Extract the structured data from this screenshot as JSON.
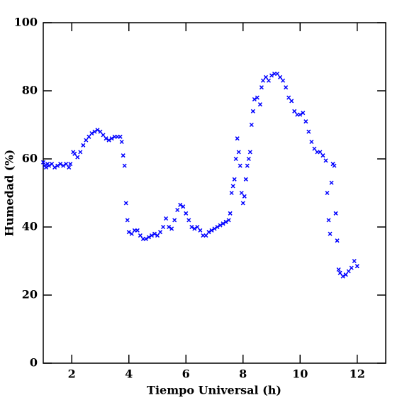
{
  "chart_data": {
    "type": "scatter",
    "xlabel": "Tiempo Universal (h)",
    "ylabel": "Humedad (%)",
    "xlim": [
      1,
      13
    ],
    "ylim": [
      0,
      100
    ],
    "xticks": [
      2,
      4,
      6,
      8,
      10,
      12
    ],
    "yticks": [
      0,
      20,
      40,
      60,
      80,
      100
    ],
    "color": "#0000ff",
    "x": [
      1.0,
      1.05,
      1.1,
      1.15,
      1.2,
      1.3,
      1.4,
      1.5,
      1.6,
      1.7,
      1.8,
      1.9,
      1.95,
      2.05,
      2.1,
      2.2,
      2.3,
      2.4,
      2.5,
      2.6,
      2.7,
      2.8,
      2.9,
      3.0,
      3.1,
      3.2,
      3.3,
      3.4,
      3.5,
      3.6,
      3.7,
      3.75,
      3.8,
      3.85,
      3.9,
      3.95,
      4.0,
      4.1,
      4.2,
      4.3,
      4.4,
      4.5,
      4.6,
      4.7,
      4.8,
      4.9,
      5.0,
      5.1,
      5.2,
      5.3,
      5.4,
      5.5,
      5.6,
      5.7,
      5.8,
      5.9,
      6.0,
      6.1,
      6.2,
      6.3,
      6.4,
      6.5,
      6.6,
      6.7,
      6.8,
      6.9,
      7.0,
      7.1,
      7.2,
      7.3,
      7.4,
      7.5,
      7.55,
      7.6,
      7.65,
      7.7,
      7.75,
      7.8,
      7.85,
      7.9,
      7.95,
      8.0,
      8.05,
      8.1,
      8.15,
      8.2,
      8.25,
      8.3,
      8.35,
      8.4,
      8.5,
      8.6,
      8.65,
      8.7,
      8.8,
      8.9,
      9.0,
      9.1,
      9.2,
      9.3,
      9.4,
      9.5,
      9.6,
      9.7,
      9.8,
      9.9,
      10.0,
      10.1,
      10.2,
      10.3,
      10.4,
      10.5,
      10.6,
      10.7,
      10.8,
      10.9,
      10.95,
      11.0,
      11.05,
      11.1,
      11.15,
      11.2,
      11.25,
      11.3,
      11.35,
      11.4,
      11.5,
      11.6,
      11.7,
      11.8,
      11.9,
      12.0
    ],
    "y": [
      59,
      58,
      57.5,
      58.5,
      58,
      58.5,
      57.5,
      58,
      58.5,
      58,
      58.5,
      57.5,
      58.5,
      62,
      61.5,
      60.5,
      62,
      64,
      65.5,
      66.5,
      67.5,
      68,
      68.5,
      68,
      67,
      66,
      65.5,
      66,
      66.5,
      66.5,
      66.5,
      65,
      61,
      58,
      47,
      42,
      38.5,
      38,
      39,
      39,
      37.5,
      36.5,
      36.5,
      37,
      37.5,
      38,
      37.5,
      38.5,
      40,
      42.5,
      40,
      39.5,
      42,
      45,
      46.5,
      46,
      44,
      42,
      40,
      39.5,
      40,
      39,
      37.5,
      37.5,
      38.5,
      39,
      39.5,
      40,
      40.5,
      41,
      41.5,
      42,
      44,
      50,
      52,
      54,
      60,
      66,
      62,
      58,
      50,
      47,
      49,
      54,
      58,
      60,
      62,
      70,
      74,
      77.5,
      78,
      76,
      81,
      83,
      84,
      83,
      84.5,
      85,
      85,
      84,
      83,
      81,
      78,
      77,
      74,
      73,
      73,
      73.5,
      71,
      68,
      65,
      63,
      62,
      62,
      61,
      59.5,
      50,
      42,
      38,
      53,
      58.5,
      58,
      44,
      36,
      27.5,
      26.5,
      25.5,
      26,
      27,
      28,
      30,
      28.5
    ]
  }
}
